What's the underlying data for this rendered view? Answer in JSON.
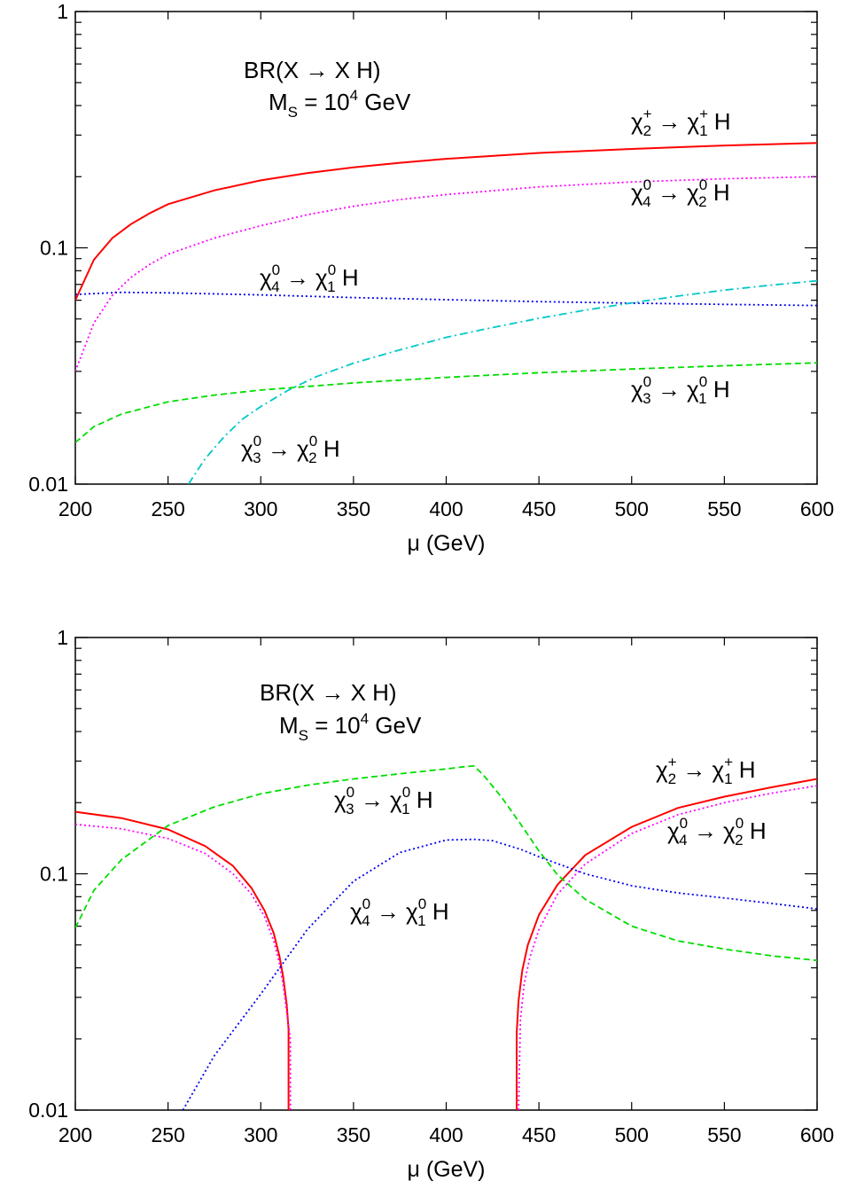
{
  "chart_data": [
    {
      "type": "line",
      "title_lines": [
        {
          "text": "BR(X → X H)"
        },
        {
          "text": "M",
          "sub": "S",
          "rest": " = 10",
          "sup": "4",
          "tail": " GeV"
        }
      ],
      "xlabel": "μ (GeV)",
      "ylabel": "",
      "xlim": [
        200,
        600
      ],
      "ylim": [
        0.01,
        1
      ],
      "yscale": "log",
      "xticks": [
        200,
        250,
        300,
        350,
        400,
        450,
        500,
        550,
        600
      ],
      "yticks": [
        {
          "value": 0.01,
          "label": "0.01"
        },
        {
          "value": 0.1,
          "label": "0.1"
        },
        {
          "value": 1,
          "label": "1"
        }
      ],
      "grid": false,
      "series": [
        {
          "label": {
            "base": "χ",
            "sup1": "+",
            "sub1": "2",
            "arrow": " → ",
            "base2": "χ",
            "sup2": "+",
            "sub2": "1",
            "tail": " H"
          },
          "color": "#ff0000",
          "dash": "solid",
          "x": [
            200,
            210,
            220,
            230,
            240,
            250,
            275,
            300,
            325,
            350,
            375,
            400,
            450,
            500,
            550,
            600
          ],
          "y": [
            0.06,
            0.089,
            0.11,
            0.126,
            0.14,
            0.153,
            0.175,
            0.193,
            0.207,
            0.219,
            0.229,
            0.238,
            0.252,
            0.262,
            0.271,
            0.278
          ]
        },
        {
          "label": {
            "base": "χ",
            "sup1": "0",
            "sub1": "4",
            "arrow": " → ",
            "base2": "χ",
            "sup2": "0",
            "sub2": "2",
            "tail": " H"
          },
          "color": "#ff00ff",
          "dash": "dotted",
          "x": [
            200,
            210,
            220,
            230,
            240,
            250,
            275,
            300,
            325,
            350,
            375,
            400,
            450,
            500,
            550,
            600
          ],
          "y": [
            0.03,
            0.048,
            0.063,
            0.075,
            0.085,
            0.094,
            0.11,
            0.124,
            0.138,
            0.15,
            0.16,
            0.168,
            0.181,
            0.19,
            0.196,
            0.2
          ]
        },
        {
          "label": {
            "base": "χ",
            "sup1": "0",
            "sub1": "4",
            "arrow": " → ",
            "base2": "χ",
            "sup2": "0",
            "sub2": "1",
            "tail": " H"
          },
          "color": "#0000ee",
          "dash": "dotted",
          "x": [
            200,
            225,
            250,
            300,
            350,
            400,
            450,
            500,
            550,
            600
          ],
          "y": [
            0.0635,
            0.0648,
            0.0645,
            0.0632,
            0.0616,
            0.0603,
            0.0592,
            0.0583,
            0.0576,
            0.057
          ]
        },
        {
          "label": {
            "base": "χ",
            "sup1": "0",
            "sub1": "3",
            "arrow": " → ",
            "base2": "χ",
            "sup2": "0",
            "sub2": "1",
            "tail": " H"
          },
          "color": "#00dd00",
          "dash": "dashed",
          "x": [
            200,
            210,
            225,
            250,
            275,
            300,
            350,
            400,
            450,
            500,
            550,
            600
          ],
          "y": [
            0.015,
            0.0175,
            0.0198,
            0.0223,
            0.0238,
            0.025,
            0.0268,
            0.0283,
            0.0296,
            0.0307,
            0.0317,
            0.0326
          ]
        },
        {
          "label": {
            "base": "χ",
            "sup1": "0",
            "sub1": "3",
            "arrow": " → ",
            "base2": "χ",
            "sup2": "0",
            "sub2": "2",
            "tail": " H"
          },
          "color": "#00c8c8",
          "dash": "dashdot",
          "x": [
            261,
            270,
            280,
            290,
            300,
            315,
            330,
            350,
            375,
            400,
            425,
            450,
            475,
            500,
            525,
            550,
            575,
            600
          ],
          "y": [
            0.01,
            0.0128,
            0.0158,
            0.0188,
            0.0213,
            0.025,
            0.0285,
            0.0325,
            0.037,
            0.0418,
            0.046,
            0.0503,
            0.0545,
            0.0585,
            0.0625,
            0.0662,
            0.0695,
            0.0725
          ]
        }
      ]
    },
    {
      "type": "line",
      "title_lines": [
        {
          "text": "BR(X → X H)"
        },
        {
          "text": "M",
          "sub": "S",
          "rest": " = 10",
          "sup": "4",
          "tail": " GeV"
        }
      ],
      "xlabel": "μ (GeV)",
      "ylabel": "",
      "xlim": [
        200,
        600
      ],
      "ylim": [
        0.01,
        1
      ],
      "yscale": "log",
      "xticks": [
        200,
        250,
        300,
        350,
        400,
        450,
        500,
        550,
        600
      ],
      "yticks": [
        {
          "value": 0.01,
          "label": "0.01"
        },
        {
          "value": 0.1,
          "label": "0.1"
        },
        {
          "value": 1,
          "label": "1"
        }
      ],
      "grid": false,
      "series": [
        {
          "label": {
            "base": "χ",
            "sup1": "+",
            "sub1": "2",
            "arrow": " → ",
            "base2": "χ",
            "sup2": "+",
            "sub2": "1",
            "tail": " H"
          },
          "color": "#ff0000",
          "dash": "solid",
          "segments": [
            {
              "x": [
                200,
                225,
                250,
                270,
                285,
                295,
                302,
                307,
                310,
                312,
                314,
                315,
                315
              ],
              "y": [
                0.183,
                0.172,
                0.154,
                0.131,
                0.108,
                0.087,
                0.07,
                0.056,
                0.045,
                0.037,
                0.028,
                0.022,
                0.01
              ]
            },
            {
              "x": [
                438,
                438,
                439,
                441,
                444,
                450,
                460,
                475,
                500,
                525,
                550,
                575,
                600
              ],
              "y": [
                0.01,
                0.021,
                0.029,
                0.039,
                0.05,
                0.067,
                0.09,
                0.12,
                0.158,
                0.19,
                0.212,
                0.232,
                0.252
              ]
            }
          ]
        },
        {
          "label": {
            "base": "χ",
            "sup1": "0",
            "sub1": "4",
            "arrow": " → ",
            "base2": "χ",
            "sup2": "0",
            "sub2": "2",
            "tail": " H"
          },
          "color": "#ff00ff",
          "dash": "dotted",
          "segments": [
            {
              "x": [
                200,
                225,
                250,
                270,
                285,
                295,
                302,
                307,
                310,
                312,
                314,
                316,
                316
              ],
              "y": [
                0.162,
                0.155,
                0.141,
                0.122,
                0.1,
                0.082,
                0.066,
                0.052,
                0.042,
                0.034,
                0.026,
                0.02,
                0.01
              ]
            },
            {
              "x": [
                439,
                440,
                442,
                445,
                450,
                460,
                475,
                500,
                525,
                550,
                575,
                600
              ],
              "y": [
                0.01,
                0.024,
                0.034,
                0.044,
                0.058,
                0.082,
                0.11,
                0.148,
                0.178,
                0.2,
                0.219,
                0.236
              ]
            }
          ]
        },
        {
          "label": {
            "base": "χ",
            "sup1": "0",
            "sub1": "4",
            "arrow": " → ",
            "base2": "χ",
            "sup2": "0",
            "sub2": "1",
            "tail": " H"
          },
          "color": "#0000ee",
          "dash": "dotted",
          "x": [
            258,
            275,
            300,
            325,
            350,
            375,
            400,
            415,
            425,
            440,
            450,
            475,
            500,
            525,
            550,
            575,
            600
          ],
          "y": [
            0.01,
            0.017,
            0.031,
            0.058,
            0.093,
            0.123,
            0.139,
            0.14,
            0.138,
            0.127,
            0.118,
            0.1,
            0.089,
            0.083,
            0.079,
            0.075,
            0.071
          ]
        },
        {
          "label": {
            "base": "χ",
            "sup1": "0",
            "sub1": "3",
            "arrow": " → ",
            "base2": "χ",
            "sup2": "0",
            "sub2": "1",
            "tail": " H"
          },
          "color": "#00dd00",
          "dash": "dashed",
          "x": [
            200,
            210,
            225,
            250,
            275,
            300,
            325,
            350,
            375,
            400,
            410,
            415,
            420,
            430,
            440,
            450,
            460,
            475,
            500,
            525,
            550,
            575,
            600
          ],
          "y": [
            0.059,
            0.085,
            0.115,
            0.16,
            0.192,
            0.218,
            0.237,
            0.252,
            0.265,
            0.278,
            0.284,
            0.286,
            0.262,
            0.21,
            0.163,
            0.125,
            0.099,
            0.078,
            0.06,
            0.052,
            0.048,
            0.045,
            0.043
          ]
        }
      ]
    }
  ]
}
